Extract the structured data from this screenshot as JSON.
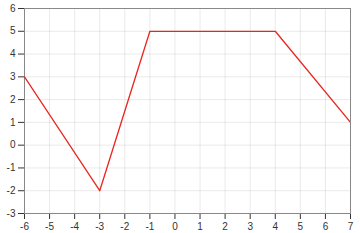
{
  "chart_data": {
    "type": "line",
    "x": [
      -6,
      -3,
      -1,
      4,
      7
    ],
    "values": [
      3,
      -2,
      5,
      5,
      1
    ],
    "color": "#e8261e",
    "xlim": [
      -6,
      7
    ],
    "xticks": [
      -6,
      -5,
      -4,
      -3,
      -2,
      -1,
      0,
      1,
      2,
      3,
      4,
      5,
      6,
      7
    ],
    "ylim": [
      -3,
      6
    ],
    "yticks": [
      -3,
      -2,
      -1,
      0,
      1,
      2,
      3,
      4,
      5,
      6
    ],
    "grid": true
  }
}
